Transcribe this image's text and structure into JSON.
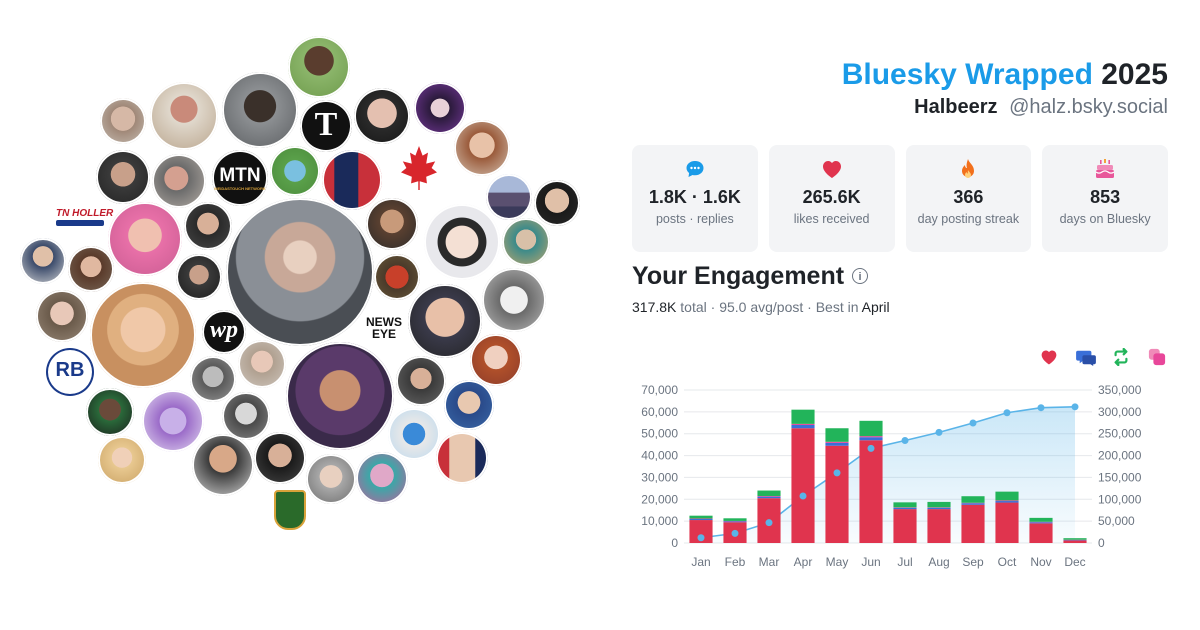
{
  "header": {
    "brand": "Bluesky Wrapped",
    "year": "2025",
    "display_name": "Halbeerz",
    "handle": "@halz.bsky.social"
  },
  "stats": [
    {
      "icon": "speech-bubble-icon",
      "color": "#1a9be8",
      "value": "1.8K · 1.6K",
      "label": "posts · replies"
    },
    {
      "icon": "heart-icon",
      "color": "#e0344e",
      "value": "265.6K",
      "label": "likes received"
    },
    {
      "icon": "flame-icon",
      "color": "#f2701c",
      "value": "366",
      "label": "day posting streak"
    },
    {
      "icon": "cake-icon",
      "color": "#e8579a",
      "value": "853",
      "label": "days on Bluesky"
    }
  ],
  "engagement": {
    "title": "Your Engagement",
    "total": "317.8K",
    "total_label": "total",
    "avg": "95.0 avg/post",
    "best_prefix": "Best in",
    "best_month": "April",
    "legend": [
      {
        "icon": "heart-icon",
        "color": "#e0344e"
      },
      {
        "icon": "reply-icon",
        "color": "#3a6fd8"
      },
      {
        "icon": "repost-icon",
        "color": "#22b45a"
      },
      {
        "icon": "quote-icon",
        "color": "#e8479a"
      }
    ]
  },
  "avatars_logos": {
    "tn_holler": "TN HOLLER",
    "mtn": "MTN",
    "mtn_sub": "MEIDASTOUCH NETWORK",
    "news_eye_1": "NEWS",
    "news_eye_2": "EYE",
    "wp": "wp",
    "rb": "RB",
    "nyt": "T"
  },
  "chart_data": {
    "type": "bar",
    "categories": [
      "Jan",
      "Feb",
      "Mar",
      "Apr",
      "May",
      "Jun",
      "Jul",
      "Aug",
      "Sep",
      "Oct",
      "Nov",
      "Dec"
    ],
    "series": [
      {
        "color": "#e0344e",
        "values": [
          10500,
          9500,
          20500,
          52500,
          44500,
          47000,
          15500,
          15500,
          17500,
          18500,
          9000,
          1200
        ]
      },
      {
        "color": "#3a6fd8",
        "values": [
          500,
          400,
          700,
          1500,
          1300,
          1400,
          600,
          600,
          700,
          700,
          500,
          200
        ]
      },
      {
        "color": "#e8479a",
        "values": [
          200,
          200,
          300,
          500,
          500,
          500,
          200,
          200,
          200,
          300,
          200,
          100
        ]
      },
      {
        "color": "#22b45a",
        "values": [
          1300,
          1200,
          2500,
          6500,
          6200,
          7000,
          2300,
          2500,
          3000,
          4000,
          1800,
          700
        ]
      },
      {
        "type": "area",
        "color": "#5ab4e8",
        "values": [
          12000,
          22000,
          46500,
          107500,
          160500,
          216500,
          234500,
          253000,
          274500,
          298000,
          309500,
          311500
        ]
      }
    ],
    "ylim": [
      0,
      70000
    ],
    "yticks": [
      "0",
      "10,000",
      "20,000",
      "30,000",
      "40,000",
      "50,000",
      "60,000",
      "70,000"
    ],
    "y2lim": [
      0,
      350000
    ],
    "y2ticks": [
      "0",
      "50,000",
      "100,000",
      "150,000",
      "200,000",
      "250,000",
      "300,000",
      "350,000"
    ],
    "grid": true
  }
}
